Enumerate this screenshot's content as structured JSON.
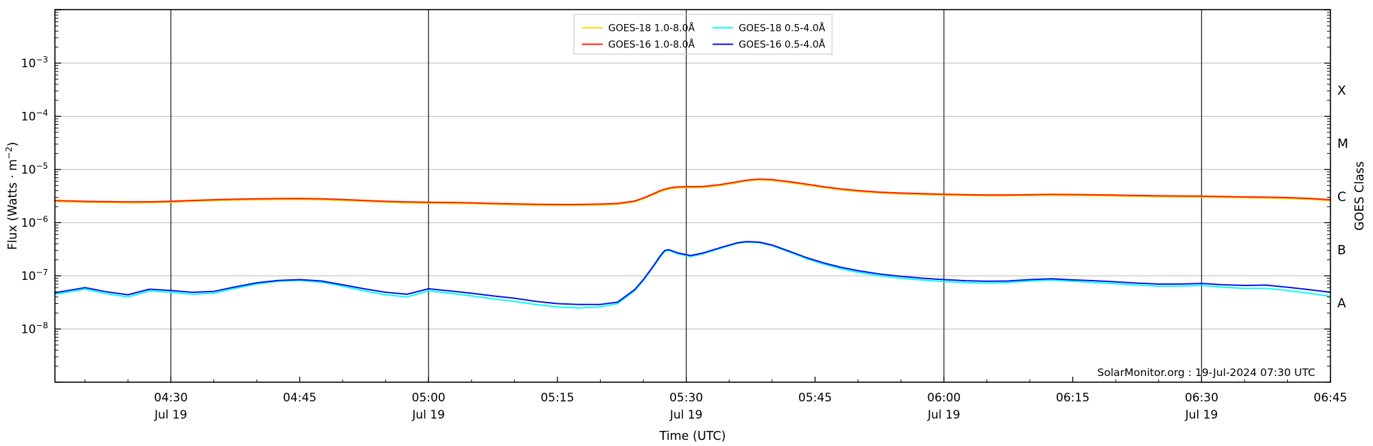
{
  "chart_data": {
    "type": "line",
    "xlabel": "Time (UTC)",
    "ylabel": "Flux (Watts · m",
    "ylabel_sup": "−2",
    "ylabel_close": ")",
    "ylabel_right": "GOES Class",
    "annotation": "SolarMonitor.org : 19-Jul-2024 07:30 UTC",
    "date_label": "Jul 19",
    "x_axis": {
      "start_minutes_after_0400": 16.5,
      "end_minutes_after_0400": 165,
      "minor_tick_step_minutes": 5,
      "gridline_minutes": [
        30,
        60,
        90,
        120,
        150
      ],
      "major_ticks": [
        {
          "t": 30,
          "label": "04:30",
          "date": true
        },
        {
          "t": 45,
          "label": "04:45",
          "date": false
        },
        {
          "t": 60,
          "label": "05:00",
          "date": true
        },
        {
          "t": 75,
          "label": "05:15",
          "date": false
        },
        {
          "t": 90,
          "label": "05:30",
          "date": true
        },
        {
          "t": 105,
          "label": "05:45",
          "date": false
        },
        {
          "t": 120,
          "label": "06:00",
          "date": true
        },
        {
          "t": 135,
          "label": "06:15",
          "date": false
        },
        {
          "t": 150,
          "label": "06:30",
          "date": true
        },
        {
          "t": 165,
          "label": "06:45",
          "date": false
        }
      ]
    },
    "y_axis": {
      "scale": "log",
      "min_exponent": -9,
      "max_exponent": -2,
      "labeled_exponents": [
        -3,
        -4,
        -5,
        -6,
        -7,
        -8
      ]
    },
    "goes_classes": [
      {
        "label": "X",
        "mid_exponent": -3.5
      },
      {
        "label": "M",
        "mid_exponent": -4.5
      },
      {
        "label": "C",
        "mid_exponent": -5.5
      },
      {
        "label": "B",
        "mid_exponent": -6.5
      },
      {
        "label": "A",
        "mid_exponent": -7.5
      }
    ],
    "colors": {
      "grid_horizontal": "#c6c6c6",
      "grid_vertical": "#111111",
      "frame": "#000000",
      "legend_border": "#cccccc"
    },
    "t_minutes_after_0400": [
      16.5,
      20,
      22.5,
      25,
      27.5,
      30,
      32.5,
      35,
      37.5,
      40,
      42.5,
      45,
      47.5,
      50,
      52.5,
      55,
      57.5,
      60,
      62.5,
      65,
      67.5,
      70,
      72.5,
      75,
      77.5,
      80,
      82,
      84,
      85,
      86,
      87,
      87.5,
      88,
      89,
      90.5,
      92,
      94,
      96,
      97,
      98.5,
      100,
      102,
      104,
      106,
      108,
      110,
      112.5,
      115,
      117.5,
      120,
      122.5,
      125,
      127.5,
      130,
      132.5,
      135,
      137.5,
      140,
      142.5,
      145,
      147.5,
      150,
      152.5,
      155,
      157.5,
      160,
      162.5,
      165
    ],
    "series": [
      {
        "name": "GOES-18 1.0-8.0Å",
        "color": "#ffd400",
        "values": [
          2.5e-06,
          2.42e-06,
          2.38e-06,
          2.36e-06,
          2.37e-06,
          2.42e-06,
          2.52e-06,
          2.59e-06,
          2.65e-06,
          2.69e-06,
          2.73e-06,
          2.74e-06,
          2.69e-06,
          2.61e-06,
          2.52e-06,
          2.42e-06,
          2.36e-06,
          2.32e-06,
          2.3e-06,
          2.27e-06,
          2.21e-06,
          2.17e-06,
          2.13e-06,
          2.11e-06,
          2.11e-06,
          2.15e-06,
          2.21e-06,
          2.45e-06,
          2.78e-06,
          3.26e-06,
          3.84e-06,
          4.08e-06,
          4.32e-06,
          4.51e-06,
          4.56e-06,
          4.61e-06,
          4.99e-06,
          5.66e-06,
          6.05e-06,
          6.34e-06,
          6.19e-06,
          5.66e-06,
          5.09e-06,
          4.56e-06,
          4.13e-06,
          3.84e-06,
          3.6e-06,
          3.46e-06,
          3.36e-06,
          3.28e-06,
          3.23e-06,
          3.19e-06,
          3.19e-06,
          3.23e-06,
          3.26e-06,
          3.24e-06,
          3.21e-06,
          3.17e-06,
          3.11e-06,
          3.07e-06,
          3.05e-06,
          3.02e-06,
          2.98e-06,
          2.93e-06,
          2.9e-06,
          2.84e-06,
          2.75e-06,
          2.59e-06
        ]
      },
      {
        "name": "GOES-16 1.0-8.0Å",
        "color": "#ff1e00",
        "values": [
          2.6e-06,
          2.52e-06,
          2.48e-06,
          2.46e-06,
          2.47e-06,
          2.52e-06,
          2.62e-06,
          2.7e-06,
          2.76e-06,
          2.8e-06,
          2.84e-06,
          2.85e-06,
          2.8e-06,
          2.72e-06,
          2.62e-06,
          2.52e-06,
          2.46e-06,
          2.42e-06,
          2.4e-06,
          2.36e-06,
          2.3e-06,
          2.26e-06,
          2.22e-06,
          2.2e-06,
          2.2e-06,
          2.24e-06,
          2.3e-06,
          2.55e-06,
          2.9e-06,
          3.4e-06,
          4e-06,
          4.25e-06,
          4.5e-06,
          4.7e-06,
          4.75e-06,
          4.8e-06,
          5.2e-06,
          5.9e-06,
          6.3e-06,
          6.6e-06,
          6.45e-06,
          5.9e-06,
          5.3e-06,
          4.75e-06,
          4.3e-06,
          4e-06,
          3.75e-06,
          3.6e-06,
          3.5e-06,
          3.42e-06,
          3.36e-06,
          3.32e-06,
          3.32e-06,
          3.36e-06,
          3.4e-06,
          3.38e-06,
          3.34e-06,
          3.3e-06,
          3.24e-06,
          3.2e-06,
          3.18e-06,
          3.15e-06,
          3.1e-06,
          3.05e-06,
          3.02e-06,
          2.96e-06,
          2.86e-06,
          2.7e-06
        ]
      },
      {
        "name": "GOES-18 0.5-4.0Å",
        "color": "#00ffff",
        "values": [
          4.5e-08,
          5.6e-08,
          4.6e-08,
          4e-08,
          5.2e-08,
          4.9e-08,
          4.5e-08,
          4.7e-08,
          5.8e-08,
          7e-08,
          7.9e-08,
          8.2e-08,
          7.6e-08,
          6.4e-08,
          5.2e-08,
          4.4e-08,
          4e-08,
          5.2e-08,
          4.7e-08,
          4.2e-08,
          3.7e-08,
          3.3e-08,
          2.9e-08,
          2.6e-08,
          2.5e-08,
          2.6e-08,
          3e-08,
          5.2e-08,
          8.2e-08,
          1.35e-07,
          2.3e-07,
          2.9e-07,
          3e-07,
          2.6e-07,
          2.3e-07,
          2.6e-07,
          3.3e-07,
          4.1e-07,
          4.3e-07,
          4.2e-07,
          3.7e-07,
          2.8e-07,
          2.1e-07,
          1.66e-07,
          1.36e-07,
          1.16e-07,
          1e-07,
          9e-08,
          8.3e-08,
          7.8e-08,
          7.5e-08,
          7.3e-08,
          7.5e-08,
          8e-08,
          8.3e-08,
          7.9e-08,
          7.5e-08,
          7.1e-08,
          6.7e-08,
          6.4e-08,
          6.4e-08,
          6.6e-08,
          6.1e-08,
          5.8e-08,
          5.8e-08,
          5.3e-08,
          4.7e-08,
          4.1e-08
        ]
      },
      {
        "name": "GOES-16 0.5-4.0Å",
        "color": "#0011ee",
        "values": [
          4.8e-08,
          6e-08,
          5e-08,
          4.4e-08,
          5.6e-08,
          5.3e-08,
          4.9e-08,
          5.1e-08,
          6.2e-08,
          7.4e-08,
          8.2e-08,
          8.5e-08,
          8e-08,
          6.8e-08,
          5.7e-08,
          4.9e-08,
          4.5e-08,
          5.7e-08,
          5.2e-08,
          4.7e-08,
          4.2e-08,
          3.8e-08,
          3.3e-08,
          3e-08,
          2.9e-08,
          2.9e-08,
          3.2e-08,
          5.5e-08,
          8.5e-08,
          1.4e-07,
          2.4e-07,
          3e-07,
          3.1e-07,
          2.7e-07,
          2.4e-07,
          2.7e-07,
          3.4e-07,
          4.2e-07,
          4.4e-07,
          4.3e-07,
          3.8e-07,
          2.9e-07,
          2.2e-07,
          1.75e-07,
          1.45e-07,
          1.25e-07,
          1.08e-07,
          9.8e-08,
          9e-08,
          8.5e-08,
          8.1e-08,
          7.9e-08,
          8e-08,
          8.5e-08,
          8.8e-08,
          8.4e-08,
          8.1e-08,
          7.7e-08,
          7.3e-08,
          7e-08,
          7e-08,
          7.2e-08,
          6.8e-08,
          6.6e-08,
          6.7e-08,
          6.1e-08,
          5.5e-08,
          4.9e-08
        ]
      }
    ],
    "legend": {
      "column_order": [
        [
          0,
          1
        ],
        [
          2,
          3
        ]
      ]
    }
  }
}
